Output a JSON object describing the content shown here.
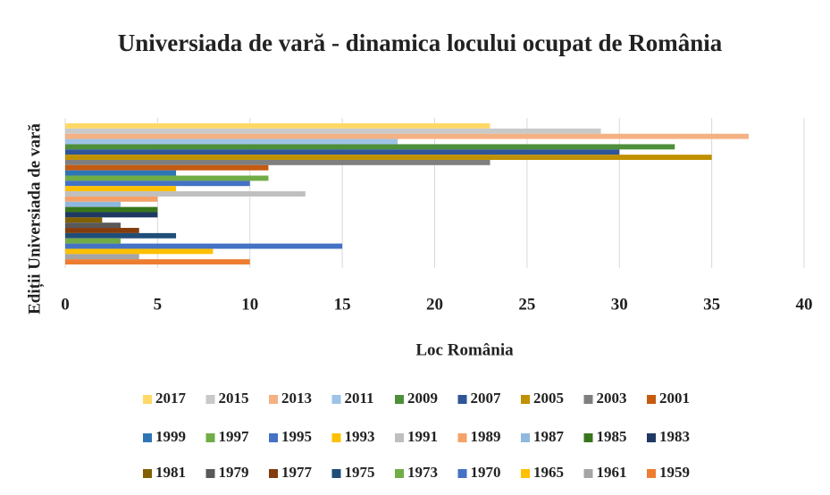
{
  "chart_data": {
    "type": "barh",
    "title": "Universiada de vară - dinamica locului ocupat de România",
    "xlabel": "Loc România",
    "ylabel": "Ediții Universiada de vară",
    "xlim": [
      0,
      40
    ],
    "xticks": [
      0,
      5,
      10,
      15,
      20,
      25,
      30,
      35,
      40
    ],
    "grid": true,
    "legend": "bottom",
    "series": [
      {
        "name": "2017",
        "color": "#ffd966",
        "values": [
          23
        ]
      },
      {
        "name": "2015",
        "color": "#c9c9c9",
        "values": [
          29
        ]
      },
      {
        "name": "2013",
        "color": "#f4b183",
        "values": [
          37
        ]
      },
      {
        "name": "2011",
        "color": "#9dc3e6",
        "values": [
          18
        ]
      },
      {
        "name": "2009",
        "color": "#4e8f3a",
        "values": [
          33
        ]
      },
      {
        "name": "2007",
        "color": "#2f5597",
        "values": [
          30
        ]
      },
      {
        "name": "2005",
        "color": "#bf9000",
        "values": [
          35
        ]
      },
      {
        "name": "2003",
        "color": "#7f7f7f",
        "values": [
          23
        ]
      },
      {
        "name": "2001",
        "color": "#c55a11",
        "values": [
          11
        ]
      },
      {
        "name": "1999",
        "color": "#2e75b6",
        "values": [
          6
        ]
      },
      {
        "name": "1997",
        "color": "#70ad47",
        "values": [
          11
        ]
      },
      {
        "name": "1995",
        "color": "#4472c4",
        "values": [
          10
        ]
      },
      {
        "name": "1993",
        "color": "#ffc000",
        "values": [
          6
        ]
      },
      {
        "name": "1991",
        "color": "#bfbfbf",
        "values": [
          13
        ]
      },
      {
        "name": "1989",
        "color": "#f4a16a",
        "values": [
          5
        ]
      },
      {
        "name": "1987",
        "color": "#8fb8de",
        "values": [
          3
        ]
      },
      {
        "name": "1985",
        "color": "#38761d",
        "values": [
          5
        ]
      },
      {
        "name": "1983",
        "color": "#1f3864",
        "values": [
          5
        ]
      },
      {
        "name": "1981",
        "color": "#806000",
        "values": [
          2
        ]
      },
      {
        "name": "1979",
        "color": "#595959",
        "values": [
          3
        ]
      },
      {
        "name": "1977",
        "color": "#843c0c",
        "values": [
          4
        ]
      },
      {
        "name": "1975",
        "color": "#1f4e79",
        "values": [
          6
        ]
      },
      {
        "name": "1973",
        "color": "#70ad47",
        "values": [
          3
        ]
      },
      {
        "name": "1970",
        "color": "#4472c4",
        "values": [
          15
        ]
      },
      {
        "name": "1965",
        "color": "#ffc000",
        "values": [
          8
        ]
      },
      {
        "name": "1961",
        "color": "#a5a5a5",
        "values": [
          4
        ]
      },
      {
        "name": "1959",
        "color": "#ed7d31",
        "values": [
          10
        ]
      }
    ]
  }
}
